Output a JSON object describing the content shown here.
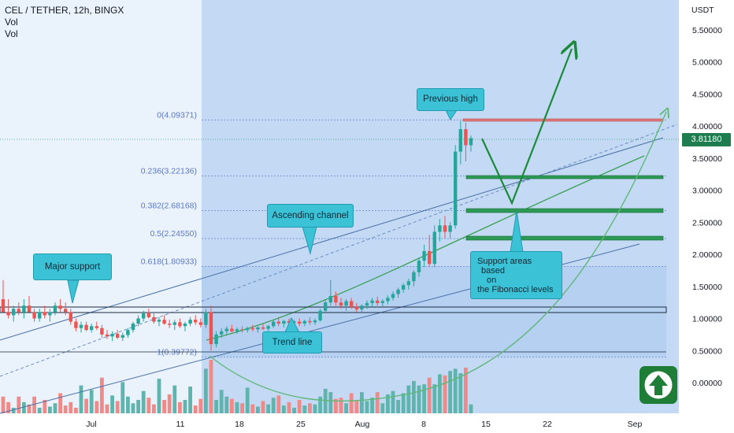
{
  "header": {
    "title": "CEL / TETHER, 12h, BINGX",
    "vol1": "Vol",
    "vol2": "Vol"
  },
  "axis": {
    "currency": "USDT",
    "price_badge": "3.81180",
    "colors": {
      "up": "#26a69a",
      "down": "#ef5350",
      "fib": "#5b79c7",
      "badge": "#1e7d4f"
    }
  },
  "callouts": {
    "major_support": "Major support",
    "ascending_channel": "Ascending channel",
    "previous_high": "Previous high",
    "trend_line": "Trend line",
    "support_areas": [
      "Support areas",
      "based",
      "on",
      "the Fibonacci levels"
    ]
  },
  "fib_levels": [
    {
      "label": "0(4.09371)",
      "value": 4.09371
    },
    {
      "label": "0.236(3.22136)",
      "value": 3.22136
    },
    {
      "label": "0.382(2.68168)",
      "value": 2.68168
    },
    {
      "label": "0.5(2.24550)",
      "value": 2.2455
    },
    {
      "label": "0.618(1.80933)",
      "value": 1.80933
    },
    {
      "label": "1(0.39772)",
      "value": 0.39772
    }
  ],
  "chart_data": {
    "type": "candlestick",
    "symbol": "CEL / TETHER",
    "interval": "12h",
    "exchange": "BINGX",
    "y_unit": "USDT",
    "yticks": [
      0,
      0.5,
      1,
      1.5,
      2,
      2.5,
      3,
      3.5,
      4,
      4.5,
      5,
      5.5
    ],
    "ytick_labels": [
      "0.00000",
      "0.50000",
      "1.00000",
      "1.50000",
      "2.00000",
      "2.50000",
      "3.00000",
      "3.50000",
      "4.00000",
      "4.50000",
      "5.00000",
      "5.50000"
    ],
    "xticks": [
      "Jul",
      "11",
      "18",
      "25",
      "Aug",
      "8",
      "15",
      "22",
      "Sep"
    ],
    "last_price": 3.8118,
    "candles": [
      [
        1.3,
        1.6,
        1.1,
        1.1
      ],
      [
        1.1,
        1.3,
        1.0,
        1.05
      ],
      [
        1.05,
        1.2,
        0.95,
        1.15
      ],
      [
        1.15,
        1.25,
        1.05,
        1.1
      ],
      [
        1.1,
        1.3,
        1.0,
        1.2
      ],
      [
        1.2,
        1.35,
        1.1,
        1.1
      ],
      [
        1.1,
        1.15,
        0.95,
        1.0
      ],
      [
        1.0,
        1.15,
        0.95,
        1.1
      ],
      [
        1.1,
        1.2,
        1.0,
        1.05
      ],
      [
        1.05,
        1.15,
        0.95,
        1.1
      ],
      [
        1.1,
        1.25,
        1.05,
        1.2
      ],
      [
        1.2,
        1.3,
        1.1,
        1.15
      ],
      [
        1.15,
        1.25,
        1.05,
        1.1
      ],
      [
        1.1,
        1.15,
        0.9,
        0.95
      ],
      [
        0.95,
        1.0,
        0.8,
        0.85
      ],
      [
        0.85,
        0.95,
        0.78,
        0.9
      ],
      [
        0.9,
        0.95,
        0.8,
        0.82
      ],
      [
        0.82,
        0.92,
        0.78,
        0.88
      ],
      [
        0.88,
        0.95,
        0.82,
        0.85
      ],
      [
        0.85,
        0.9,
        0.7,
        0.75
      ],
      [
        0.75,
        0.82,
        0.68,
        0.72
      ],
      [
        0.72,
        0.8,
        0.65,
        0.76
      ],
      [
        0.76,
        0.82,
        0.68,
        0.7
      ],
      [
        0.7,
        0.78,
        0.65,
        0.74
      ],
      [
        0.74,
        0.85,
        0.7,
        0.82
      ],
      [
        0.82,
        0.95,
        0.78,
        0.92
      ],
      [
        0.92,
        1.05,
        0.88,
        1.0
      ],
      [
        1.0,
        1.12,
        0.95,
        1.08
      ],
      [
        1.08,
        1.15,
        1.0,
        1.02
      ],
      [
        1.02,
        1.08,
        0.92,
        0.95
      ],
      [
        0.95,
        1.02,
        0.88,
        0.98
      ],
      [
        0.98,
        1.05,
        0.9,
        0.92
      ],
      [
        0.92,
        0.98,
        0.85,
        0.9
      ],
      [
        0.9,
        0.98,
        0.82,
        0.94
      ],
      [
        0.94,
        1.0,
        0.85,
        0.88
      ],
      [
        0.88,
        0.95,
        0.8,
        0.92
      ],
      [
        0.92,
        1.02,
        0.88,
        0.98
      ],
      [
        0.98,
        1.05,
        0.9,
        0.94
      ],
      [
        0.94,
        1.0,
        0.86,
        0.9
      ],
      [
        0.9,
        1.15,
        0.85,
        1.1
      ],
      [
        1.1,
        1.2,
        0.5,
        0.6
      ],
      [
        0.6,
        0.8,
        0.55,
        0.75
      ],
      [
        0.75,
        0.85,
        0.7,
        0.8
      ],
      [
        0.8,
        0.88,
        0.75,
        0.84
      ],
      [
        0.84,
        0.9,
        0.78,
        0.8
      ],
      [
        0.8,
        0.86,
        0.76,
        0.83
      ],
      [
        0.83,
        0.88,
        0.78,
        0.82
      ],
      [
        0.82,
        0.87,
        0.78,
        0.85
      ],
      [
        0.85,
        0.9,
        0.8,
        0.83
      ],
      [
        0.83,
        0.88,
        0.78,
        0.86
      ],
      [
        0.86,
        0.92,
        0.82,
        0.84
      ],
      [
        0.84,
        0.9,
        0.8,
        0.88
      ],
      [
        0.88,
        0.98,
        0.85,
        0.95
      ],
      [
        0.95,
        1.02,
        0.88,
        0.92
      ],
      [
        0.92,
        0.98,
        0.86,
        0.96
      ],
      [
        0.96,
        1.0,
        0.88,
        0.93
      ],
      [
        0.93,
        0.98,
        0.88,
        0.95
      ],
      [
        0.95,
        1.0,
        0.88,
        0.92
      ],
      [
        0.92,
        0.98,
        0.88,
        0.96
      ],
      [
        0.96,
        1.02,
        0.9,
        0.94
      ],
      [
        0.94,
        1.0,
        0.9,
        0.97
      ],
      [
        0.97,
        1.15,
        0.95,
        1.12
      ],
      [
        1.12,
        1.28,
        1.08,
        1.25
      ],
      [
        1.25,
        1.6,
        1.2,
        1.35
      ],
      [
        1.35,
        1.42,
        1.2,
        1.25
      ],
      [
        1.25,
        1.32,
        1.15,
        1.2
      ],
      [
        1.2,
        1.3,
        1.12,
        1.27
      ],
      [
        1.27,
        1.32,
        1.15,
        1.18
      ],
      [
        1.18,
        1.24,
        1.1,
        1.14
      ],
      [
        1.14,
        1.22,
        1.08,
        1.2
      ],
      [
        1.2,
        1.28,
        1.15,
        1.24
      ],
      [
        1.24,
        1.32,
        1.18,
        1.28
      ],
      [
        1.28,
        1.34,
        1.2,
        1.24
      ],
      [
        1.24,
        1.3,
        1.18,
        1.27
      ],
      [
        1.27,
        1.36,
        1.22,
        1.32
      ],
      [
        1.32,
        1.42,
        1.28,
        1.38
      ],
      [
        1.38,
        1.48,
        1.32,
        1.45
      ],
      [
        1.45,
        1.55,
        1.4,
        1.52
      ],
      [
        1.52,
        1.62,
        1.45,
        1.58
      ],
      [
        1.58,
        1.75,
        1.5,
        1.72
      ],
      [
        1.72,
        1.95,
        1.65,
        1.9
      ],
      [
        1.9,
        2.15,
        1.8,
        2.05
      ],
      [
        2.05,
        2.3,
        1.8,
        1.85
      ],
      [
        1.85,
        2.45,
        1.8,
        2.35
      ],
      [
        2.35,
        2.55,
        2.2,
        2.45
      ],
      [
        2.45,
        2.6,
        2.25,
        2.35
      ],
      [
        2.35,
        2.5,
        2.25,
        2.45
      ],
      [
        2.45,
        3.7,
        2.4,
        3.6
      ],
      [
        3.6,
        4.08,
        3.4,
        3.95
      ],
      [
        3.95,
        4.05,
        3.45,
        3.7
      ],
      [
        3.7,
        3.85,
        3.6,
        3.81
      ]
    ],
    "volume": [
      1.5,
      1,
      0.5,
      1.5,
      1,
      0.8,
      1.5,
      0.5,
      1.2,
      0.6,
      0.9,
      1.8,
      0.7,
      1,
      0.5,
      2.5,
      1.3,
      2.1,
      1.1,
      3.2,
      0.8,
      1.6,
      1.1,
      2.8,
      1.5,
      0.9,
      1.2,
      2,
      1.4,
      0.8,
      3.1,
      1.2,
      1.7,
      2.5,
      1,
      1.2,
      2.4,
      0.7,
      1.3,
      4,
      4.8,
      1.2,
      2.1,
      1.5,
      1.3,
      1,
      0.9,
      2.3,
      0.8,
      0.6,
      1.1,
      0.8,
      1.4,
      1.6,
      0.7,
      1,
      0.5,
      1.2,
      0.7,
      0.9,
      0.8,
      1.5,
      2.2,
      1.9,
      1.3,
      1.4,
      0.9,
      1.8,
      1.1,
      1.9,
      1.1,
      1.4,
      1.9,
      0.9,
      1.7,
      2,
      1.2,
      1.8,
      2.5,
      2.9,
      2.5,
      2.6,
      3.2,
      2.6,
      3.5,
      3.4,
      3.8,
      4,
      3.6,
      4.1,
      0.8
    ]
  }
}
